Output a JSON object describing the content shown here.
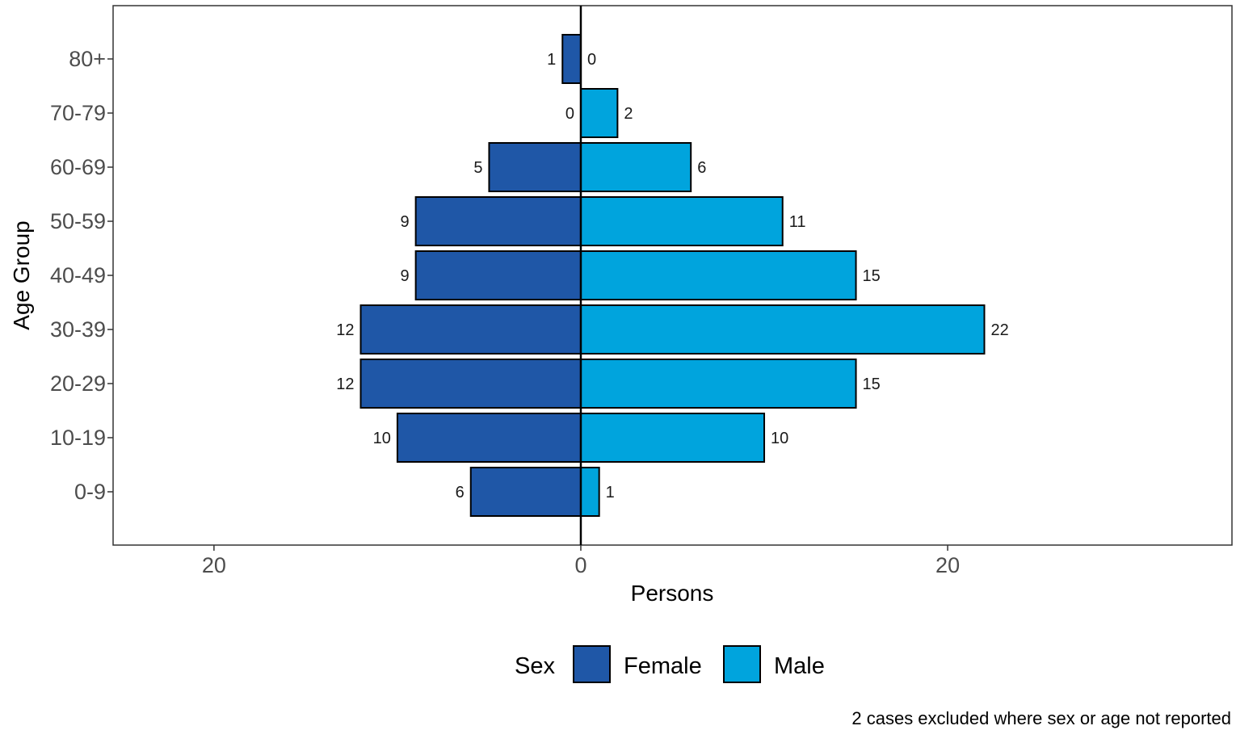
{
  "chart_data": {
    "type": "bar",
    "orientation": "horizontal",
    "layout": "population-pyramid",
    "categories": [
      "80+",
      "70-79",
      "60-69",
      "50-59",
      "40-49",
      "30-39",
      "20-29",
      "10-19",
      "0-9"
    ],
    "series": [
      {
        "name": "Female",
        "values": [
          1,
          0,
          5,
          9,
          9,
          12,
          12,
          10,
          6
        ],
        "color": "#1f57a7",
        "side": "left"
      },
      {
        "name": "Male",
        "values": [
          0,
          2,
          6,
          11,
          15,
          22,
          15,
          10,
          1
        ],
        "color": "#00a4dd",
        "side": "right"
      }
    ],
    "xlabel": "Persons",
    "ylabel": "Age Group",
    "xlim": [
      -25.5,
      35.5
    ],
    "x_ticks": [
      {
        "value": -20,
        "label": "20"
      },
      {
        "value": 0,
        "label": "0"
      },
      {
        "value": 20,
        "label": "20"
      }
    ],
    "legend": {
      "title": "Sex",
      "position": "bottom"
    },
    "grid": false,
    "caption": "2 cases excluded where sex or age not reported"
  }
}
